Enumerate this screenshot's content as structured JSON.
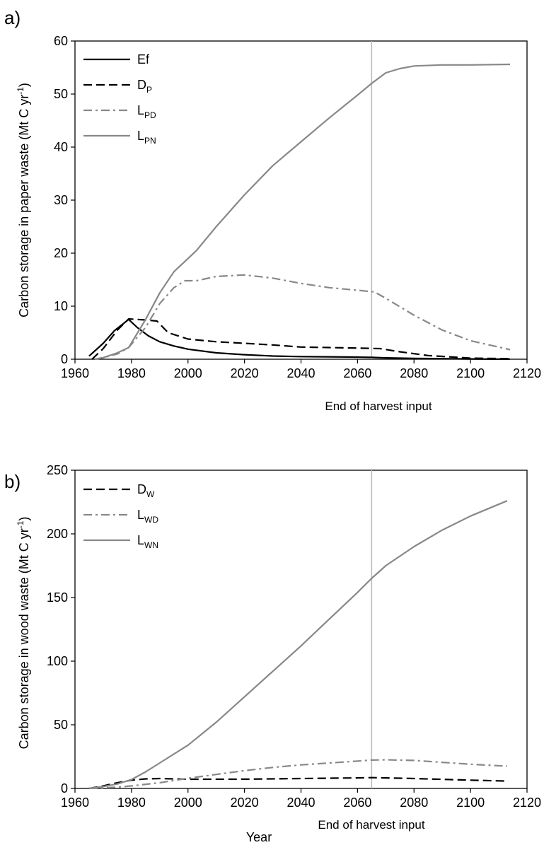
{
  "panels": {
    "a": {
      "letter": "a)",
      "annotation": "End of harvest input"
    },
    "b": {
      "letter": "b)",
      "annotation": "End of harvest input",
      "xlabel": "Year"
    }
  },
  "chart_data": [
    {
      "type": "line",
      "panel": "a)",
      "ylabel": "Carbon storage in paper waste (Mt C yr^-1)",
      "ylabel_text": "Carbon storage in paper waste (Mt C yr",
      "ylabel_sup": "-1",
      "ylabel_close": ")",
      "xlim": [
        1960,
        2120
      ],
      "ylim": [
        0,
        60
      ],
      "x_ticks": [
        1960,
        1980,
        2000,
        2020,
        2040,
        2060,
        2080,
        2100,
        2120
      ],
      "y_ticks": [
        0,
        10,
        20,
        30,
        40,
        50,
        60
      ],
      "vline": {
        "x": 2065,
        "label": "End of harvest input"
      },
      "legend_position": "top-left",
      "series": [
        {
          "name": "Ef",
          "base": "Ef",
          "sub": "",
          "color": "#000000",
          "dash": "solid",
          "points": [
            [
              1965,
              0.6
            ],
            [
              1970,
              3.0
            ],
            [
              1974,
              5.4
            ],
            [
              1979,
              7.5
            ],
            [
              1982,
              6.0
            ],
            [
              1986,
              4.4
            ],
            [
              1990,
              3.3
            ],
            [
              1995,
              2.5
            ],
            [
              2000,
              1.9
            ],
            [
              2010,
              1.2
            ],
            [
              2020,
              0.85
            ],
            [
              2030,
              0.6
            ],
            [
              2040,
              0.5
            ],
            [
              2050,
              0.45
            ],
            [
              2060,
              0.4
            ],
            [
              2065,
              0.35
            ],
            [
              2070,
              0.25
            ],
            [
              2080,
              0.15
            ],
            [
              2100,
              0.05
            ],
            [
              2114,
              0.0
            ]
          ]
        },
        {
          "name": "DP",
          "base": "D",
          "sub": "P",
          "color": "#000000",
          "dash": "dashed",
          "points": [
            [
              1966,
              0.0
            ],
            [
              1970,
              2.0
            ],
            [
              1975,
              5.5
            ],
            [
              1979,
              7.6
            ],
            [
              1985,
              7.4
            ],
            [
              1989,
              7.2
            ],
            [
              1993,
              5.0
            ],
            [
              2000,
              3.8
            ],
            [
              2010,
              3.3
            ],
            [
              2020,
              3.0
            ],
            [
              2030,
              2.7
            ],
            [
              2040,
              2.3
            ],
            [
              2050,
              2.2
            ],
            [
              2060,
              2.1
            ],
            [
              2068,
              2.0
            ],
            [
              2075,
              1.4
            ],
            [
              2085,
              0.7
            ],
            [
              2100,
              0.2
            ],
            [
              2114,
              0.1
            ]
          ]
        },
        {
          "name": "LPD",
          "base": "L",
          "sub": "PD",
          "color": "#888888",
          "dash": "dashdot",
          "points": [
            [
              1967,
              0.0
            ],
            [
              1970,
              0.3
            ],
            [
              1975,
              1.0
            ],
            [
              1979,
              2.2
            ],
            [
              1985,
              6.0
            ],
            [
              1990,
              10.5
            ],
            [
              1995,
              13.5
            ],
            [
              1999,
              14.8
            ],
            [
              2003,
              14.8
            ],
            [
              2010,
              15.6
            ],
            [
              2020,
              15.9
            ],
            [
              2030,
              15.3
            ],
            [
              2040,
              14.3
            ],
            [
              2050,
              13.5
            ],
            [
              2060,
              13.0
            ],
            [
              2066,
              12.7
            ],
            [
              2070,
              11.5
            ],
            [
              2080,
              8.3
            ],
            [
              2090,
              5.5
            ],
            [
              2100,
              3.5
            ],
            [
              2114,
              1.8
            ]
          ]
        },
        {
          "name": "LPN",
          "base": "L",
          "sub": "PN",
          "color": "#888888",
          "dash": "solid",
          "points": [
            [
              1967,
              0.0
            ],
            [
              1970,
              0.3
            ],
            [
              1975,
              1.2
            ],
            [
              1979,
              2.2
            ],
            [
              1985,
              7.5
            ],
            [
              1990,
              12.5
            ],
            [
              1995,
              16.5
            ],
            [
              1999,
              18.5
            ],
            [
              2003,
              20.5
            ],
            [
              2010,
              25.0
            ],
            [
              2020,
              31.0
            ],
            [
              2030,
              36.5
            ],
            [
              2040,
              41.0
            ],
            [
              2050,
              45.5
            ],
            [
              2060,
              49.8
            ],
            [
              2065,
              52.0
            ],
            [
              2070,
              54.0
            ],
            [
              2075,
              54.8
            ],
            [
              2080,
              55.3
            ],
            [
              2090,
              55.5
            ],
            [
              2100,
              55.5
            ],
            [
              2114,
              55.6
            ]
          ]
        }
      ]
    },
    {
      "type": "line",
      "panel": "b)",
      "xlabel": "Year",
      "ylabel": "Carbon storage in wood waste (Mt C yr^-1)",
      "ylabel_text": "Carbon storage in wood waste (Mt C yr",
      "ylabel_sup": "-1",
      "ylabel_close": ")",
      "xlim": [
        1960,
        2120
      ],
      "ylim": [
        0,
        250
      ],
      "x_ticks": [
        1960,
        1980,
        2000,
        2020,
        2040,
        2060,
        2080,
        2100,
        2120
      ],
      "y_ticks": [
        0,
        50,
        100,
        150,
        200,
        250
      ],
      "vline": {
        "x": 2065,
        "label": "End of harvest input"
      },
      "legend_position": "top-left",
      "series": [
        {
          "name": "DW",
          "base": "D",
          "sub": "W",
          "color": "#000000",
          "dash": "dashed",
          "points": [
            [
              1965,
              0.0
            ],
            [
              1970,
              2.0
            ],
            [
              1975,
              4.5
            ],
            [
              1980,
              6.5
            ],
            [
              1985,
              7.5
            ],
            [
              1990,
              7.8
            ],
            [
              2000,
              7.2
            ],
            [
              2020,
              7.3
            ],
            [
              2040,
              7.8
            ],
            [
              2060,
              8.3
            ],
            [
              2065,
              8.5
            ],
            [
              2080,
              7.8
            ],
            [
              2100,
              6.5
            ],
            [
              2113,
              5.8
            ]
          ]
        },
        {
          "name": "LWD",
          "base": "L",
          "sub": "WD",
          "color": "#888888",
          "dash": "dashdot",
          "points": [
            [
              1965,
              0.0
            ],
            [
              1975,
              1.0
            ],
            [
              1980,
              2.0
            ],
            [
              1990,
              4.5
            ],
            [
              2000,
              8.0
            ],
            [
              2010,
              11.0
            ],
            [
              2020,
              14.0
            ],
            [
              2030,
              16.5
            ],
            [
              2040,
              18.5
            ],
            [
              2050,
              20.0
            ],
            [
              2060,
              21.5
            ],
            [
              2065,
              22.3
            ],
            [
              2070,
              22.5
            ],
            [
              2080,
              22.0
            ],
            [
              2090,
              20.5
            ],
            [
              2100,
              19.0
            ],
            [
              2113,
              17.5
            ]
          ]
        },
        {
          "name": "LWN",
          "base": "L",
          "sub": "WN",
          "color": "#888888",
          "dash": "solid",
          "points": [
            [
              1965,
              0.0
            ],
            [
              1970,
              1.5
            ],
            [
              1975,
              3.5
            ],
            [
              1980,
              7.0
            ],
            [
              1985,
              13.0
            ],
            [
              1990,
              20.0
            ],
            [
              2000,
              34.0
            ],
            [
              2010,
              52.0
            ],
            [
              2020,
              72.0
            ],
            [
              2030,
              92.0
            ],
            [
              2040,
              112.0
            ],
            [
              2050,
              133.0
            ],
            [
              2060,
              154.0
            ],
            [
              2065,
              165.0
            ],
            [
              2070,
              175.0
            ],
            [
              2080,
              190.0
            ],
            [
              2090,
              203.0
            ],
            [
              2100,
              214.0
            ],
            [
              2113,
              226.0
            ]
          ]
        }
      ]
    }
  ]
}
